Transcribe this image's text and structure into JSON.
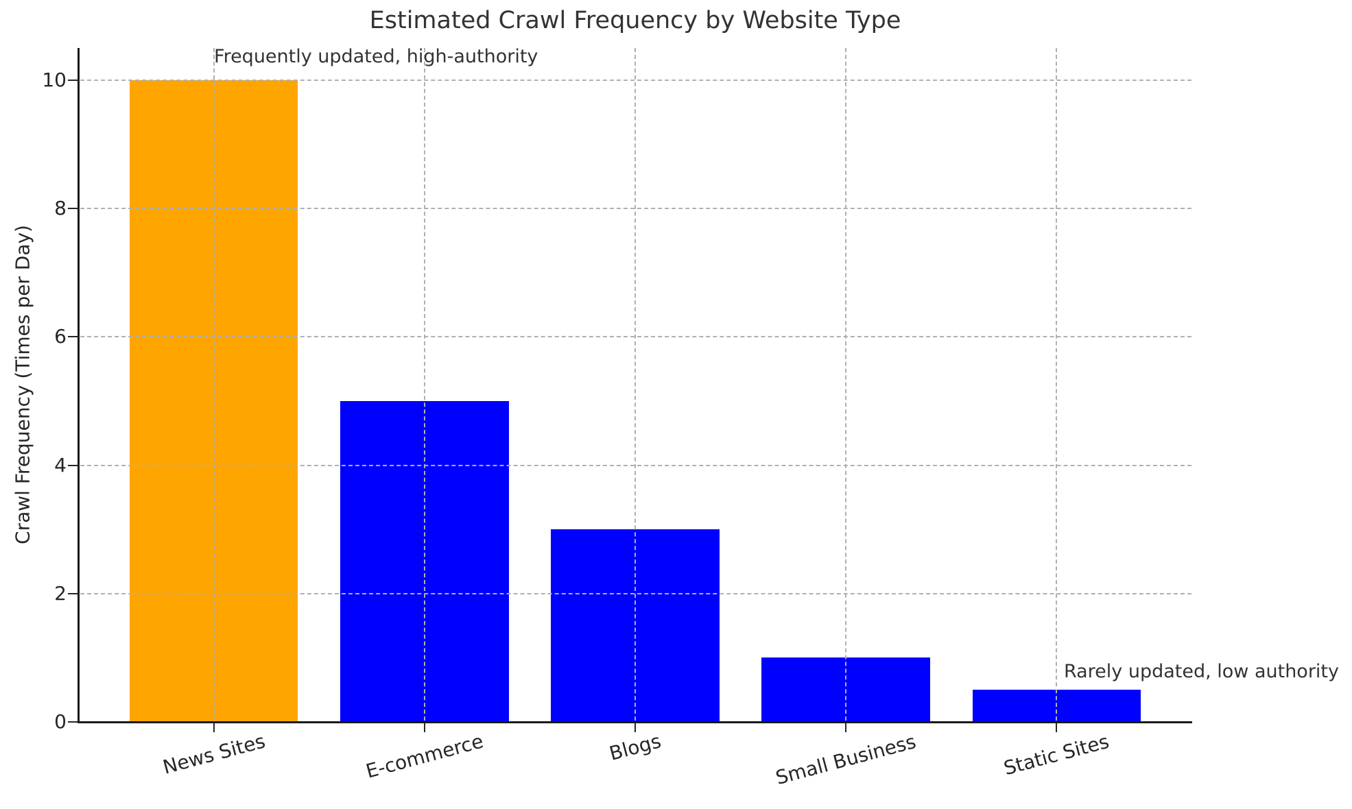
{
  "chart_data": {
    "type": "bar",
    "title": "Estimated Crawl Frequency by Website Type",
    "xlabel": "",
    "ylabel": "Crawl Frequency (Times per Day)",
    "categories": [
      "News Sites",
      "E-commerce",
      "Blogs",
      "Small Business",
      "Static Sites"
    ],
    "values": [
      10,
      5,
      3,
      1,
      0.5
    ],
    "bar_colors": [
      "#FFA500",
      "#0000FF",
      "#0000FF",
      "#0000FF",
      "#0000FF"
    ],
    "ylim": [
      0,
      10.5
    ],
    "yticks": [
      0,
      2,
      4,
      6,
      8,
      10
    ],
    "grid": {
      "style": "dashed",
      "axes": "both",
      "color": "#b0b0b0",
      "above_bars": true
    },
    "x_tick_rotation_deg": 15,
    "legend": "none",
    "annotations": [
      {
        "text": "Frequently updated, high-authority",
        "position": "top-left, above News Sites bar"
      },
      {
        "text": "Rarely updated, low authority",
        "position": "right side, above Static Sites bar"
      }
    ]
  },
  "colors": {
    "highlight_bar": "#FFA500",
    "default_bar": "#0000FF",
    "grid": "#b0b0b0",
    "axis": "#1a1a1a",
    "text": "#333333"
  }
}
